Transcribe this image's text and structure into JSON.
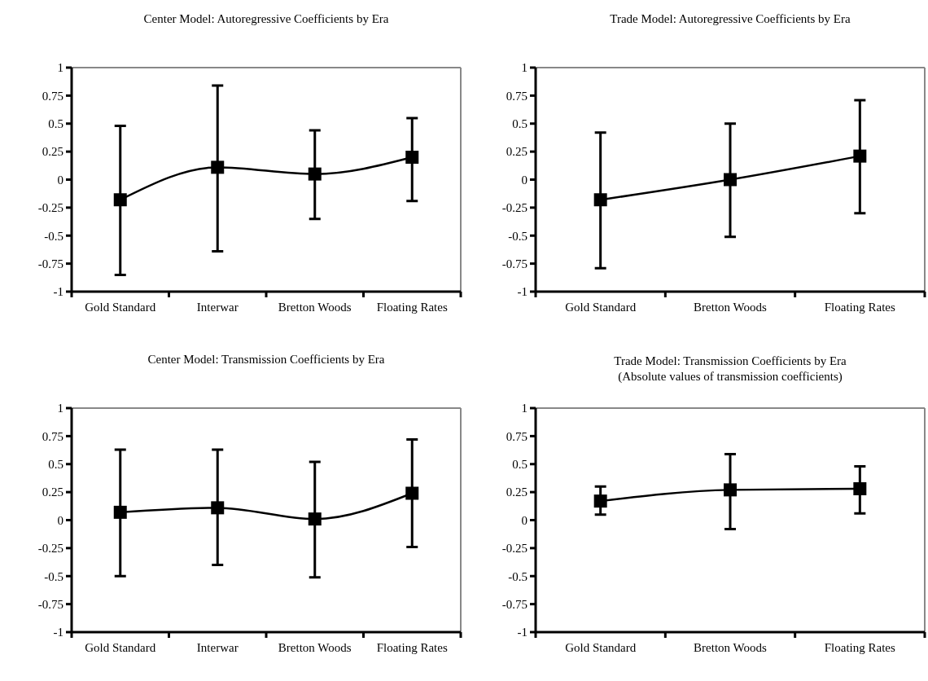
{
  "chart_data": [
    {
      "type": "line",
      "title": "Center Model: Autoregressive Coefficients by Era",
      "categories": [
        "Gold Standard",
        "Interwar",
        "Bretton Woods",
        "Floating Rates"
      ],
      "series": [
        {
          "color": "#000000",
          "values": [
            -0.18,
            0.11,
            0.05,
            0.2
          ],
          "errors": [
            [
              -0.85,
              0.48
            ],
            [
              -0.64,
              0.84
            ],
            [
              -0.35,
              0.44
            ],
            [
              -0.19,
              0.55
            ]
          ]
        }
      ],
      "ylim": [
        -1,
        1
      ],
      "yticks": [
        -1,
        -0.75,
        -0.5,
        -0.25,
        0,
        0.25,
        0.5,
        0.75,
        1
      ],
      "marker": "square",
      "grid": false
    },
    {
      "type": "line",
      "title": "Trade Model: Autoregressive Coefficients by Era",
      "categories": [
        "Gold Standard",
        "Bretton Woods",
        "Floating Rates"
      ],
      "series": [
        {
          "color": "#000000",
          "values": [
            -0.18,
            0.0,
            0.21
          ],
          "errors": [
            [
              -0.79,
              0.42
            ],
            [
              -0.51,
              0.5
            ],
            [
              -0.3,
              0.71
            ]
          ]
        }
      ],
      "ylim": [
        -1,
        1
      ],
      "yticks": [
        -1,
        -0.75,
        -0.5,
        -0.25,
        0,
        0.25,
        0.5,
        0.75,
        1
      ],
      "marker": "square",
      "grid": false
    },
    {
      "type": "line",
      "title": "Center Model: Transmission Coefficients by Era",
      "categories": [
        "Gold Standard",
        "Interwar",
        "Bretton Woods",
        "Floating Rates"
      ],
      "series": [
        {
          "color": "#000000",
          "values": [
            0.07,
            0.11,
            0.01,
            0.24
          ],
          "errors": [
            [
              -0.5,
              0.63
            ],
            [
              -0.4,
              0.63
            ],
            [
              -0.51,
              0.52
            ],
            [
              -0.24,
              0.72
            ]
          ]
        }
      ],
      "ylim": [
        -1,
        1
      ],
      "yticks": [
        -1,
        -0.75,
        -0.5,
        -0.25,
        0,
        0.25,
        0.5,
        0.75,
        1
      ],
      "marker": "square",
      "grid": false
    },
    {
      "type": "line",
      "title": "Trade Model: Transmission Coefficients by Era",
      "subtitle": "(Absolute values of transmission coefficients)",
      "categories": [
        "Gold Standard",
        "Bretton Woods",
        "Floating Rates"
      ],
      "series": [
        {
          "color": "#000000",
          "values": [
            0.17,
            0.27,
            0.28
          ],
          "errors": [
            [
              0.05,
              0.3
            ],
            [
              -0.08,
              0.59
            ],
            [
              0.06,
              0.48
            ]
          ]
        }
      ],
      "ylim": [
        -1,
        1
      ],
      "yticks": [
        -1,
        -0.75,
        -0.5,
        -0.25,
        0,
        0.25,
        0.5,
        0.75,
        1
      ],
      "marker": "square",
      "grid": false
    }
  ]
}
